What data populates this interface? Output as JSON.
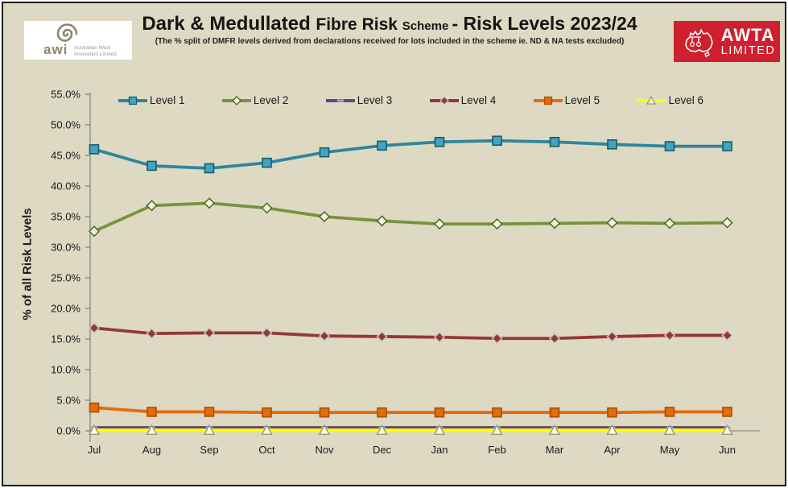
{
  "colors": {
    "page_background": "#DDD9C3",
    "awta_red": "#CE202E",
    "awi_olive": "#8A8768",
    "axis_grey": "#7F7F7F",
    "title_text": "#151515"
  },
  "header": {
    "awi": {
      "icon": "wool-spiral-icon",
      "acronym": "awi",
      "sub_line1": "Australian Wool",
      "sub_line2": "Innovation Limited"
    },
    "title_part1": "Dark & Medullated ",
    "title_part2": "Fibre Risk ",
    "title_part3": "Scheme ",
    "title_part4": " - Risk Levels 2023/24",
    "subtitle": "(The % split of DMFR levels derived from declarations received for lots included in the scheme ie. ND & NA tests excluded)",
    "awta": {
      "icon": "australia-map-icon",
      "line1": "AWTA",
      "line2": "LIMITED"
    }
  },
  "chart_data": {
    "type": "line",
    "title": "Dark & Medullated Fibre Risk Scheme - Risk Levels 2023/24",
    "xlabel": "",
    "ylabel": "% of all Risk Levels",
    "ylim": [
      0,
      55
    ],
    "ytick_step": 5,
    "ytick_labels": [
      "0.0%",
      "5.0%",
      "10.0%",
      "15.0%",
      "20.0%",
      "25.0%",
      "30.0%",
      "35.0%",
      "40.0%",
      "45.0%",
      "50.0%",
      "55.0%"
    ],
    "grid": false,
    "legend_position": "top",
    "categories": [
      "Jul",
      "Aug",
      "Sep",
      "Oct",
      "Nov",
      "Dec",
      "Jan",
      "Feb",
      "Mar",
      "Apr",
      "May",
      "Jun"
    ],
    "series": [
      {
        "name": "Level 1",
        "color": "#31859B",
        "marker": "square",
        "marker_fill": "#41A5C0",
        "marker_stroke": "#1D5968",
        "values": [
          46.0,
          43.3,
          42.9,
          43.8,
          45.5,
          46.6,
          47.2,
          47.4,
          47.2,
          46.8,
          46.5,
          46.5
        ]
      },
      {
        "name": "Level 2",
        "color": "#77933C",
        "marker": "diamond",
        "marker_fill": "#EFF5E1",
        "marker_stroke": "#4F6228",
        "values": [
          32.6,
          36.8,
          37.2,
          36.4,
          35.0,
          34.3,
          33.8,
          33.8,
          33.9,
          34.0,
          33.9,
          34.0
        ]
      },
      {
        "name": "Level 3",
        "color": "#604A7B",
        "marker": "dash",
        "marker_fill": "#B2A1C7",
        "marker_stroke": "none",
        "values": [
          0.5,
          0.5,
          0.5,
          0.5,
          0.5,
          0.5,
          0.5,
          0.5,
          0.5,
          0.5,
          0.5,
          0.5
        ]
      },
      {
        "name": "Level 4",
        "color": "#953735",
        "marker": "diamond",
        "marker_fill": "#953735",
        "marker_stroke": "#C9C9C9",
        "values": [
          16.8,
          15.9,
          16.0,
          16.0,
          15.5,
          15.4,
          15.3,
          15.1,
          15.1,
          15.4,
          15.6,
          15.6
        ]
      },
      {
        "name": "Level 5",
        "color": "#E46C0A",
        "marker": "square",
        "marker_fill": "#E46C0A",
        "marker_stroke": "#A84F07",
        "values": [
          3.8,
          3.1,
          3.1,
          3.0,
          3.0,
          3.0,
          3.0,
          3.0,
          3.0,
          3.0,
          3.1,
          3.1
        ]
      },
      {
        "name": "Level 6",
        "color": "#FFFF00",
        "marker": "triangle",
        "marker_fill": "#FFFFC8",
        "marker_stroke": "#8E8E8E",
        "values": [
          0.1,
          0.1,
          0.1,
          0.1,
          0.1,
          0.1,
          0.1,
          0.1,
          0.1,
          0.1,
          0.1,
          0.1
        ]
      }
    ]
  }
}
